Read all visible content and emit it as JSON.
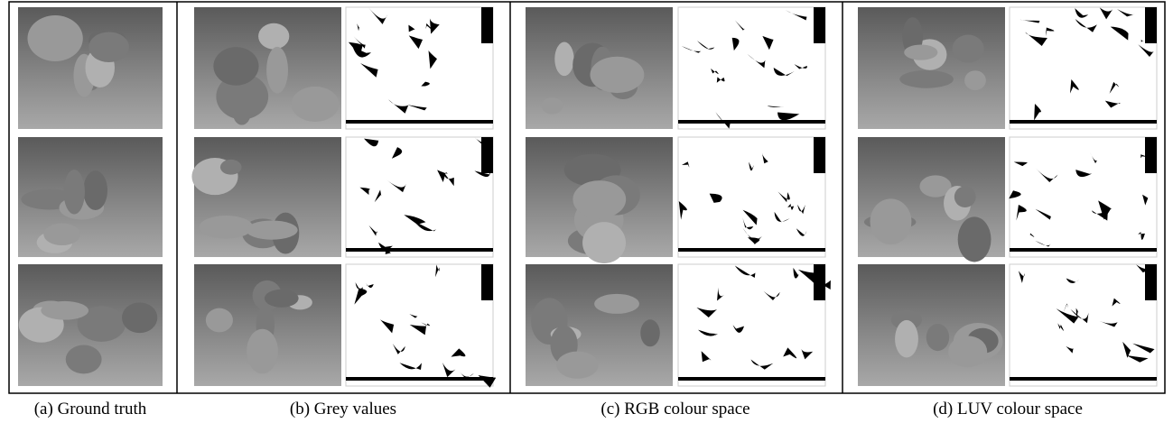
{
  "captions": [
    "(a) Ground truth",
    "(b) Grey values",
    "(c) RGB colour space",
    "(d) LUV colour space"
  ]
}
